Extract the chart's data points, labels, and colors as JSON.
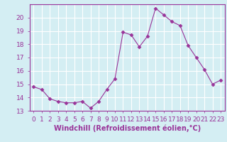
{
  "x": [
    0,
    1,
    2,
    3,
    4,
    5,
    6,
    7,
    8,
    9,
    10,
    11,
    12,
    13,
    14,
    15,
    16,
    17,
    18,
    19,
    20,
    21,
    22,
    23
  ],
  "y": [
    14.8,
    14.6,
    13.9,
    13.7,
    13.6,
    13.6,
    13.7,
    13.2,
    13.7,
    14.6,
    15.4,
    18.9,
    18.7,
    17.8,
    18.6,
    20.7,
    20.2,
    19.7,
    19.4,
    17.9,
    17.0,
    16.1,
    15.0,
    15.3
  ],
  "line_color": "#993399",
  "marker": "D",
  "markersize": 2.5,
  "linewidth": 0.8,
  "xlabel": "Windchill (Refroidissement éolien,°C)",
  "xlabel_fontsize": 7,
  "ylim": [
    13,
    21
  ],
  "xlim": [
    -0.5,
    23.5
  ],
  "yticks": [
    13,
    14,
    15,
    16,
    17,
    18,
    19,
    20
  ],
  "xticks": [
    0,
    1,
    2,
    3,
    4,
    5,
    6,
    7,
    8,
    9,
    10,
    11,
    12,
    13,
    14,
    15,
    16,
    17,
    18,
    19,
    20,
    21,
    22,
    23
  ],
  "bg_color": "#d4eef3",
  "grid_color": "#ffffff",
  "tick_color": "#993399",
  "tick_fontsize": 6.5,
  "border_color": "#993399"
}
